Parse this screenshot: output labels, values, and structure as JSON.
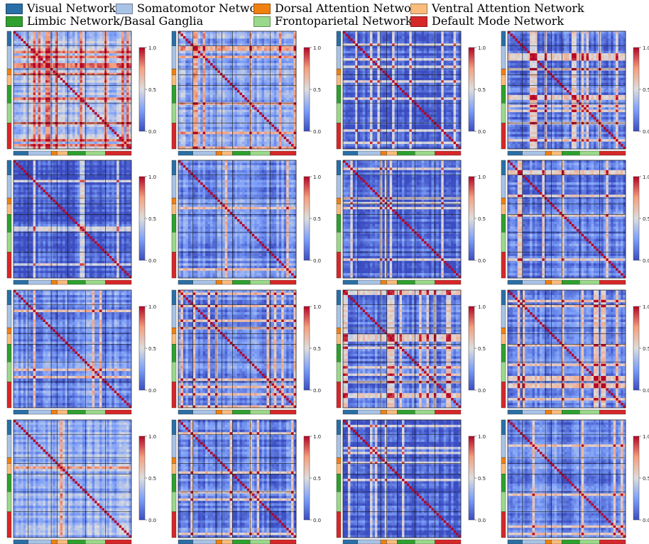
{
  "legend": {
    "items": [
      {
        "label": "Visual Network",
        "color": "#2a6fa6"
      },
      {
        "label": "Somatomotor Network",
        "color": "#a9c3e6"
      },
      {
        "label": "Dorsal Attention Network",
        "color": "#f08010"
      },
      {
        "label": "Ventral Attention Network",
        "color": "#f9bc7c"
      },
      {
        "label": "Limbic Network/Basal Ganglia",
        "color": "#2ea02e"
      },
      {
        "label": "Frontoparietal Network",
        "color": "#9ad98a"
      },
      {
        "label": "Default Mode Network",
        "color": "#d62728"
      }
    ]
  },
  "chart_data": {
    "type": "heatmap",
    "title": "",
    "rows": 4,
    "cols": 4,
    "matrix_count": 16,
    "value_range": [
      0.0,
      1.0
    ],
    "colorbar": {
      "ticks": [
        0.0,
        0.5,
        1.0
      ],
      "tick_labels": [
        "0.0",
        "0.5",
        "1.0"
      ],
      "colormap": "coolwarm"
    },
    "network_blocks": [
      {
        "label": "Visual Network",
        "fraction": 0.125,
        "color": "#2a6fa6"
      },
      {
        "label": "Somatomotor Network",
        "fraction": 0.195,
        "color": "#a9c3e6"
      },
      {
        "label": "Dorsal Attention Network",
        "fraction": 0.05,
        "color": "#f08010"
      },
      {
        "label": "Ventral Attention Network",
        "fraction": 0.09,
        "color": "#f9bc7c"
      },
      {
        "label": "Limbic Network/Basal Ganglia",
        "fraction": 0.15,
        "color": "#2ea02e"
      },
      {
        "label": "Frontoparietal Network",
        "fraction": 0.17,
        "color": "#9ad98a"
      },
      {
        "label": "Default Mode Network",
        "fraction": 0.22,
        "color": "#d62728"
      }
    ],
    "panels": [
      {
        "mean": 0.48
      },
      {
        "mean": 0.36
      },
      {
        "mean": 0.16
      },
      {
        "mean": 0.22
      },
      {
        "mean": 0.14
      },
      {
        "mean": 0.3
      },
      {
        "mean": 0.17
      },
      {
        "mean": 0.22
      },
      {
        "mean": 0.28
      },
      {
        "mean": 0.28
      },
      {
        "mean": 0.2
      },
      {
        "mean": 0.27
      },
      {
        "mean": 0.4
      },
      {
        "mean": 0.24
      },
      {
        "mean": 0.13
      },
      {
        "mean": 0.26
      }
    ]
  }
}
